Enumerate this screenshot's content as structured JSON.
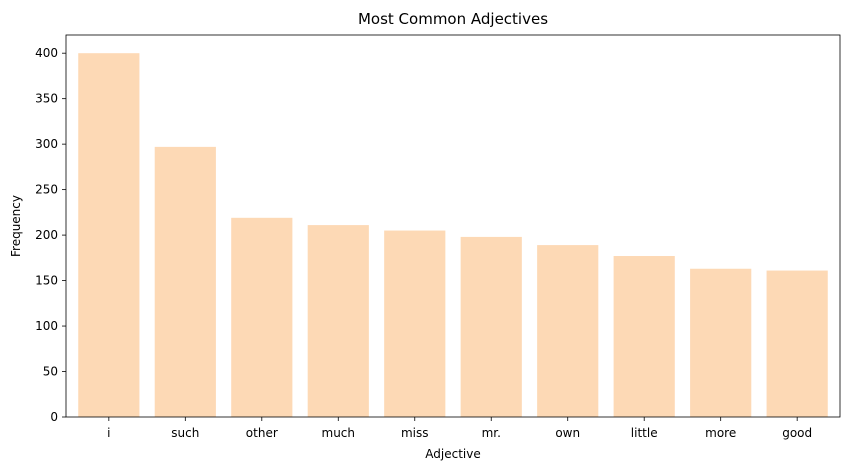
{
  "chart_data": {
    "type": "bar",
    "title": "Most Common Adjectives",
    "xlabel": "Adjective",
    "ylabel": "Frequency",
    "categories": [
      "i",
      "such",
      "other",
      "much",
      "miss",
      "mr.",
      "own",
      "little",
      "more",
      "good"
    ],
    "values": [
      400,
      297,
      219,
      211,
      205,
      198,
      189,
      177,
      163,
      161
    ],
    "ylim": [
      0,
      420
    ],
    "yticks": [
      0,
      50,
      100,
      150,
      200,
      250,
      300,
      350,
      400
    ],
    "grid": false,
    "bar_color": "#fdd9b5"
  }
}
